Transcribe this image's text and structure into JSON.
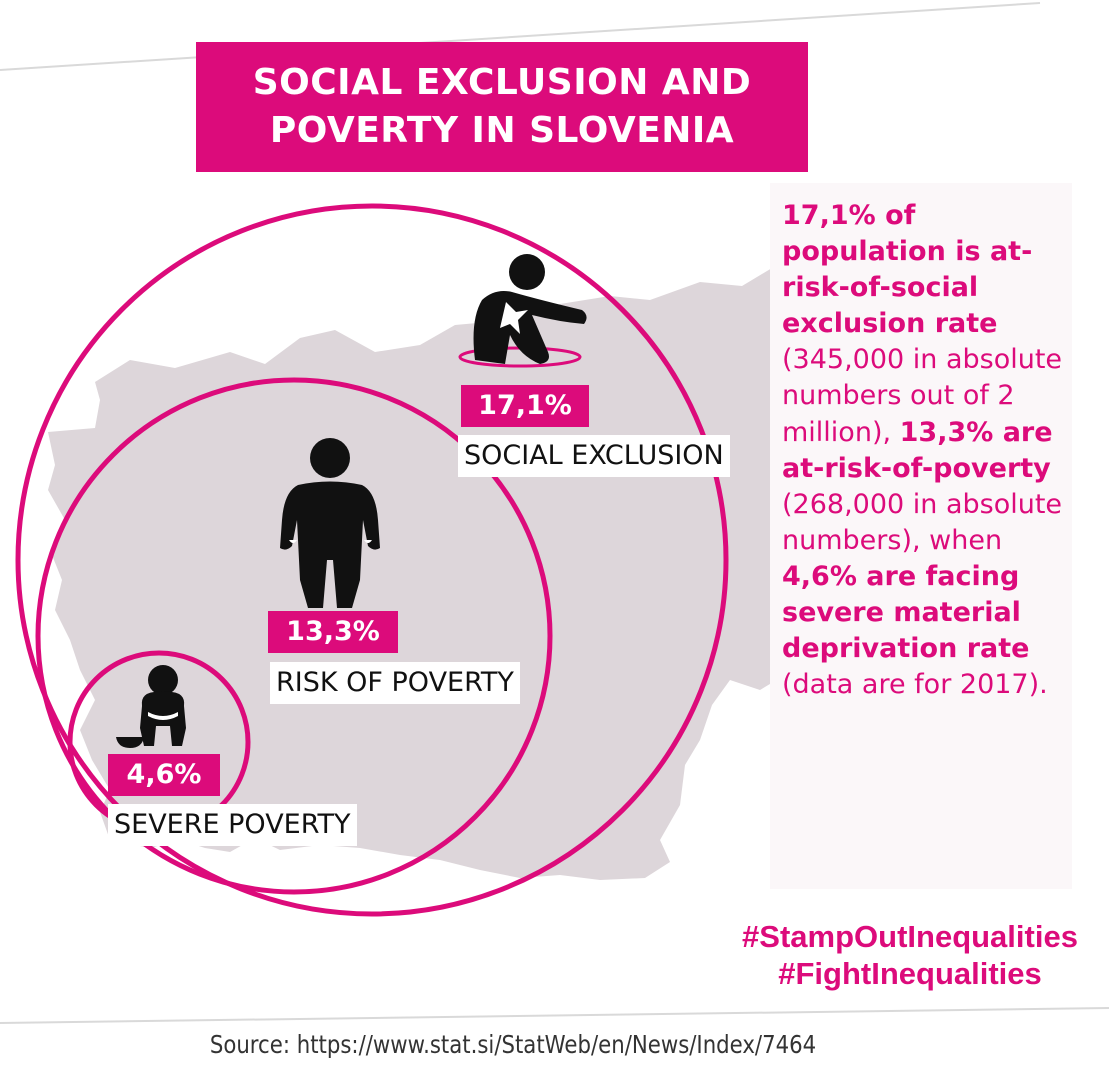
{
  "header": {
    "title_line1": "SOCIAL EXCLUSION AND",
    "title_line2": "POVERTY IN SLOVENIA"
  },
  "circles": [
    {
      "percent": "17,1%",
      "label": "SOCIAL EXCLUSION"
    },
    {
      "percent": "13,3%",
      "label": "RISK OF POVERTY"
    },
    {
      "percent": "4,6%",
      "label": "SEVERE POVERTY"
    }
  ],
  "side": {
    "p1": "17,1% of population is at-risk-of-social exclusion rate",
    "p2": " (345,000 in absolute numbers out of 2 million), ",
    "p3": "13,3% are at-risk-of-poverty",
    "p4": " (268,000 in absolute numbers), when ",
    "p5": "4,6% are facing severe material deprivation rate",
    "p6": " (data are for 2017)."
  },
  "hashtags": {
    "tag1": "#StampOutInequalities",
    "tag2": "#FightInequalities"
  },
  "source": "Source: https://www.stat.si/StatWeb/en/News/Index/7464",
  "colors": {
    "accent": "#dc0b7b",
    "map": "#ddd6da",
    "figure": "#111111"
  },
  "icons": [
    "sitting-person-icon",
    "empty-pockets-person-icon",
    "crouching-person-icon",
    "begging-bowl-icon"
  ]
}
